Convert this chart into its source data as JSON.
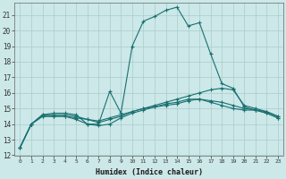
{
  "xlabel": "Humidex (Indice chaleur)",
  "background_color": "#cce8e8",
  "grid_color": "#aacccc",
  "line_color": "#1a7070",
  "xlim": [
    -0.5,
    23.5
  ],
  "ylim": [
    12,
    21.8
  ],
  "yticks": [
    12,
    13,
    14,
    15,
    16,
    17,
    18,
    19,
    20,
    21
  ],
  "xticks": [
    0,
    1,
    2,
    3,
    4,
    5,
    6,
    7,
    8,
    9,
    10,
    11,
    12,
    13,
    14,
    15,
    16,
    17,
    18,
    19,
    20,
    21,
    22,
    23
  ],
  "series": [
    {
      "x": [
        0,
        1,
        2,
        3,
        4,
        5,
        6,
        7,
        8,
        9,
        10,
        11,
        12,
        13,
        14,
        15,
        16,
        17,
        18,
        19,
        20,
        21,
        22,
        23
      ],
      "y": [
        12.5,
        14.0,
        14.6,
        14.7,
        14.7,
        14.6,
        14.0,
        14.0,
        16.1,
        14.7,
        19.0,
        20.6,
        20.9,
        21.3,
        21.5,
        20.3,
        20.5,
        18.5,
        16.6,
        16.3,
        15.1,
        14.9,
        14.8,
        14.5
      ]
    },
    {
      "x": [
        0,
        1,
        2,
        3,
        4,
        5,
        6,
        7,
        8,
        9,
        10,
        11,
        12,
        13,
        14,
        15,
        16,
        17,
        18,
        19,
        20,
        21,
        22,
        23
      ],
      "y": [
        12.5,
        14.0,
        14.5,
        14.5,
        14.5,
        14.4,
        14.3,
        14.1,
        14.3,
        14.5,
        14.8,
        15.0,
        15.2,
        15.4,
        15.6,
        15.8,
        16.0,
        16.2,
        16.3,
        16.2,
        15.2,
        15.0,
        14.8,
        14.5
      ]
    },
    {
      "x": [
        0,
        1,
        2,
        3,
        4,
        5,
        6,
        7,
        8,
        9,
        10,
        11,
        12,
        13,
        14,
        15,
        16,
        17,
        18,
        19,
        20,
        21,
        22,
        23
      ],
      "y": [
        12.5,
        14.0,
        14.5,
        14.5,
        14.5,
        14.3,
        14.0,
        13.9,
        14.0,
        14.4,
        14.7,
        14.9,
        15.1,
        15.3,
        15.4,
        15.6,
        15.6,
        15.4,
        15.2,
        15.0,
        14.9,
        14.9,
        14.7,
        14.4
      ]
    },
    {
      "x": [
        0,
        1,
        2,
        3,
        4,
        5,
        6,
        7,
        8,
        9,
        10,
        11,
        12,
        13,
        14,
        15,
        16,
        17,
        18,
        19,
        20,
        21,
        22,
        23
      ],
      "y": [
        12.5,
        14.0,
        14.6,
        14.6,
        14.6,
        14.5,
        14.3,
        14.2,
        14.4,
        14.6,
        14.8,
        15.0,
        15.1,
        15.2,
        15.3,
        15.5,
        15.6,
        15.5,
        15.4,
        15.2,
        15.0,
        14.9,
        14.7,
        14.4
      ]
    }
  ]
}
